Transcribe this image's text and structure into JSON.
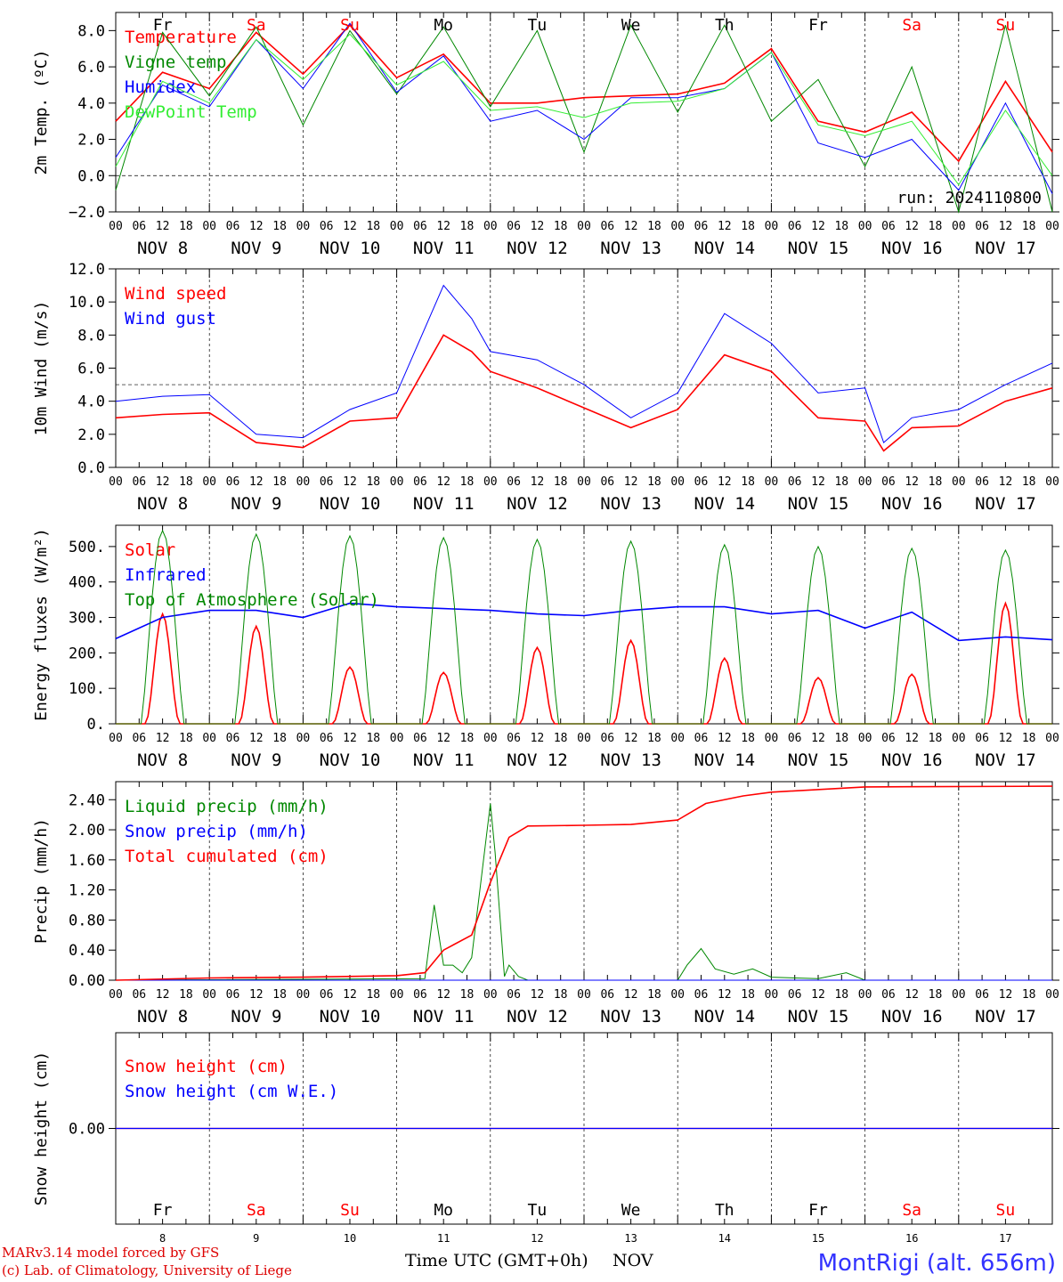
{
  "run_label": "run: 2024110800",
  "station": "MontRigi (alt. 656m)",
  "credit_line1": "MARv3.14 model forced by GFS",
  "credit_line2": "(c) Lab. of Climatology, University of Liege",
  "x_axis_title": "Time UTC (GMT+0h)",
  "x_axis_unit": "NOV",
  "days": [
    {
      "abbr": "Fr",
      "weekend": false,
      "date": "NOV  8",
      "num": "8"
    },
    {
      "abbr": "Sa",
      "weekend": true,
      "date": "NOV  9",
      "num": "9"
    },
    {
      "abbr": "Su",
      "weekend": true,
      "date": "NOV 10",
      "num": "10"
    },
    {
      "abbr": "Mo",
      "weekend": false,
      "date": "NOV 11",
      "num": "11"
    },
    {
      "abbr": "Tu",
      "weekend": false,
      "date": "NOV 12",
      "num": "12"
    },
    {
      "abbr": "We",
      "weekend": false,
      "date": "NOV 13",
      "num": "13"
    },
    {
      "abbr": "Th",
      "weekend": false,
      "date": "NOV 14",
      "num": "14"
    },
    {
      "abbr": "Fr",
      "weekend": false,
      "date": "NOV 15",
      "num": "15"
    },
    {
      "abbr": "Sa",
      "weekend": true,
      "date": "NOV 16",
      "num": "16"
    },
    {
      "abbr": "Su",
      "weekend": true,
      "date": "NOV 17",
      "num": "17"
    }
  ],
  "hour_ticks": [
    "00",
    "06",
    "12",
    "18"
  ],
  "final_hour_tick": "00",
  "colors": {
    "red": "#ff0000",
    "green": "#008800",
    "blue": "#0000ff",
    "lightgreen": "#33ee33",
    "weekend": "#ff0000",
    "snow_purple": "#8800aa"
  },
  "chart_data": [
    {
      "type": "line",
      "ylabel": "2m Temp. (ºC)",
      "ylim": [
        -2,
        9
      ],
      "yticks": [
        -2,
        0,
        2,
        4,
        6,
        8
      ],
      "ytick_labels": [
        "−2.0",
        "0.0",
        "2.0",
        "4.0",
        "6.0",
        "8.0"
      ],
      "hline": 0,
      "x": [
        0,
        0.5,
        1,
        1.5,
        2,
        2.5,
        3,
        3.5,
        4,
        4.5,
        5,
        5.5,
        6,
        6.5,
        7,
        7.5,
        8,
        8.5,
        9,
        9.5,
        10
      ],
      "series": [
        {
          "name": "Temperature",
          "color": "red",
          "values": [
            3.0,
            5.7,
            4.8,
            7.9,
            5.6,
            8.3,
            5.4,
            6.7,
            4.0,
            4.0,
            4.3,
            4.4,
            4.5,
            5.1,
            7.0,
            3.0,
            2.4,
            3.5,
            0.8,
            5.2,
            1.3
          ]
        },
        {
          "name": "Vigne temp",
          "color": "green",
          "values": [
            -0.8,
            7.9,
            4.4,
            8.2,
            2.8,
            8.0,
            4.5,
            8.2,
            3.8,
            8.0,
            1.3,
            8.3,
            3.5,
            8.3,
            3.0,
            5.3,
            0.5,
            6.0,
            -2.0,
            8.3,
            -2.0
          ]
        },
        {
          "name": "Humidex",
          "color": "blue",
          "values": [
            1.0,
            5.0,
            3.8,
            7.5,
            4.8,
            8.4,
            4.6,
            6.6,
            3.0,
            3.6,
            2.0,
            4.3,
            4.3,
            4.8,
            6.8,
            1.8,
            1.0,
            2.0,
            -0.8,
            4.0,
            -1.0
          ]
        },
        {
          "name": "DewPoint Temp",
          "color": "lightgreen",
          "values": [
            0.5,
            5.2,
            4.0,
            7.5,
            5.3,
            7.8,
            5.0,
            6.3,
            3.6,
            3.8,
            3.2,
            4.0,
            4.1,
            4.8,
            6.8,
            2.8,
            2.2,
            3.0,
            -0.5,
            3.6,
            0.0
          ]
        }
      ]
    },
    {
      "type": "line",
      "ylabel": "10m Wind (m/s)",
      "ylim": [
        0,
        12
      ],
      "yticks": [
        0,
        2,
        4,
        6,
        8,
        10,
        12
      ],
      "ytick_labels": [
        "0.0",
        "2.0",
        "4.0",
        "6.0",
        "8.0",
        "10.0",
        "12.0"
      ],
      "hline": 5,
      "x": [
        0,
        0.5,
        1,
        1.5,
        2,
        2.5,
        3,
        3.5,
        3.8,
        4.0,
        4.5,
        5,
        5.5,
        6,
        6.5,
        7,
        7.5,
        8,
        8.2,
        8.5,
        9,
        9.5,
        10
      ],
      "series": [
        {
          "name": "Wind speed",
          "color": "red",
          "values": [
            3.0,
            3.2,
            3.3,
            1.5,
            1.2,
            2.8,
            3.0,
            8.0,
            7.0,
            5.8,
            4.8,
            3.6,
            2.4,
            3.5,
            6.8,
            5.8,
            3.0,
            2.8,
            1.0,
            2.4,
            2.5,
            4.0,
            4.8
          ]
        },
        {
          "name": "Wind gust",
          "color": "blue",
          "values": [
            4.0,
            4.3,
            4.4,
            2.0,
            1.8,
            3.5,
            4.5,
            11.0,
            9.0,
            7.0,
            6.5,
            5.0,
            3.0,
            4.5,
            9.3,
            7.5,
            4.5,
            4.8,
            1.5,
            3.0,
            3.5,
            5.0,
            6.3
          ]
        }
      ]
    },
    {
      "type": "line",
      "ylabel": "Energy fluxes (W/m²)",
      "ylim": [
        0,
        560
      ],
      "yticks": [
        0,
        100,
        200,
        300,
        400,
        500
      ],
      "ytick_labels": [
        "0.",
        "100.",
        "200.",
        "300.",
        "400.",
        "500."
      ],
      "series": [
        {
          "name": "Solar",
          "color": "red",
          "peaks": [
            310,
            275,
            160,
            145,
            215,
            235,
            185,
            130,
            140,
            340
          ]
        },
        {
          "name": "Infrared",
          "color": "blue",
          "x": [
            0,
            0.5,
            1,
            1.5,
            2,
            2.5,
            3,
            3.5,
            4,
            4.5,
            5,
            5.5,
            6,
            6.5,
            7,
            7.5,
            8,
            8.5,
            9,
            9.5,
            10
          ],
          "values": [
            240,
            300,
            320,
            320,
            300,
            340,
            330,
            325,
            320,
            310,
            305,
            320,
            330,
            330,
            310,
            320,
            270,
            315,
            235,
            245,
            237
          ]
        },
        {
          "name": "Top of Atmosphere (Solar)",
          "color": "green",
          "peaks": [
            545,
            535,
            530,
            525,
            520,
            515,
            505,
            500,
            495,
            490
          ]
        }
      ]
    },
    {
      "type": "line",
      "ylabel": "Precip (mm/h)",
      "ylim": [
        0,
        2.64
      ],
      "yticks": [
        0,
        0.4,
        0.8,
        1.2,
        1.6,
        2.0,
        2.4
      ],
      "ytick_labels": [
        "0.00",
        "0.40",
        "0.80",
        "1.20",
        "1.60",
        "2.00",
        "2.40"
      ],
      "series": [
        {
          "name": "Liquid precip (mm/h)",
          "color": "green",
          "x": [
            0,
            3.3,
            3.4,
            3.5,
            3.6,
            3.7,
            3.8,
            4.0,
            4.05,
            4.15,
            4.2,
            4.3,
            4.4,
            6.0,
            6.1,
            6.25,
            6.4,
            6.6,
            6.8,
            7.0,
            7.5,
            7.8,
            8.0,
            10.0
          ],
          "values": [
            0,
            0.02,
            1.0,
            0.2,
            0.2,
            0.1,
            0.3,
            2.35,
            1.7,
            0.05,
            0.2,
            0.05,
            0.0,
            0.0,
            0.2,
            0.42,
            0.15,
            0.08,
            0.15,
            0.04,
            0.02,
            0.1,
            0.0,
            0.0
          ]
        },
        {
          "name": "Snow precip (mm/h)",
          "color": "blue",
          "x": [
            0,
            10
          ],
          "values": [
            0,
            0
          ]
        },
        {
          "name": "Total cumulated (cm)",
          "color": "red",
          "x": [
            0,
            1,
            2,
            3,
            3.3,
            3.5,
            3.8,
            4.0,
            4.2,
            4.4,
            5.0,
            5.5,
            6.0,
            6.3,
            6.7,
            7.0,
            8.0,
            10.0
          ],
          "values": [
            0,
            0.03,
            0.04,
            0.06,
            0.1,
            0.4,
            0.6,
            1.3,
            1.9,
            2.05,
            2.06,
            2.07,
            2.13,
            2.35,
            2.45,
            2.5,
            2.57,
            2.58
          ]
        }
      ]
    },
    {
      "type": "line",
      "ylabel": "Snow height (cm)",
      "ylim": [
        -1,
        1
      ],
      "yticks": [
        0
      ],
      "ytick_labels": [
        "0.00"
      ],
      "series": [
        {
          "name": "Snow height (cm)",
          "color": "red",
          "x": [
            0,
            10
          ],
          "values": [
            0,
            0
          ]
        },
        {
          "name": "Snow height (cm W.E.)",
          "color": "blue",
          "x": [
            0,
            10
          ],
          "values": [
            0,
            0
          ]
        }
      ]
    }
  ]
}
